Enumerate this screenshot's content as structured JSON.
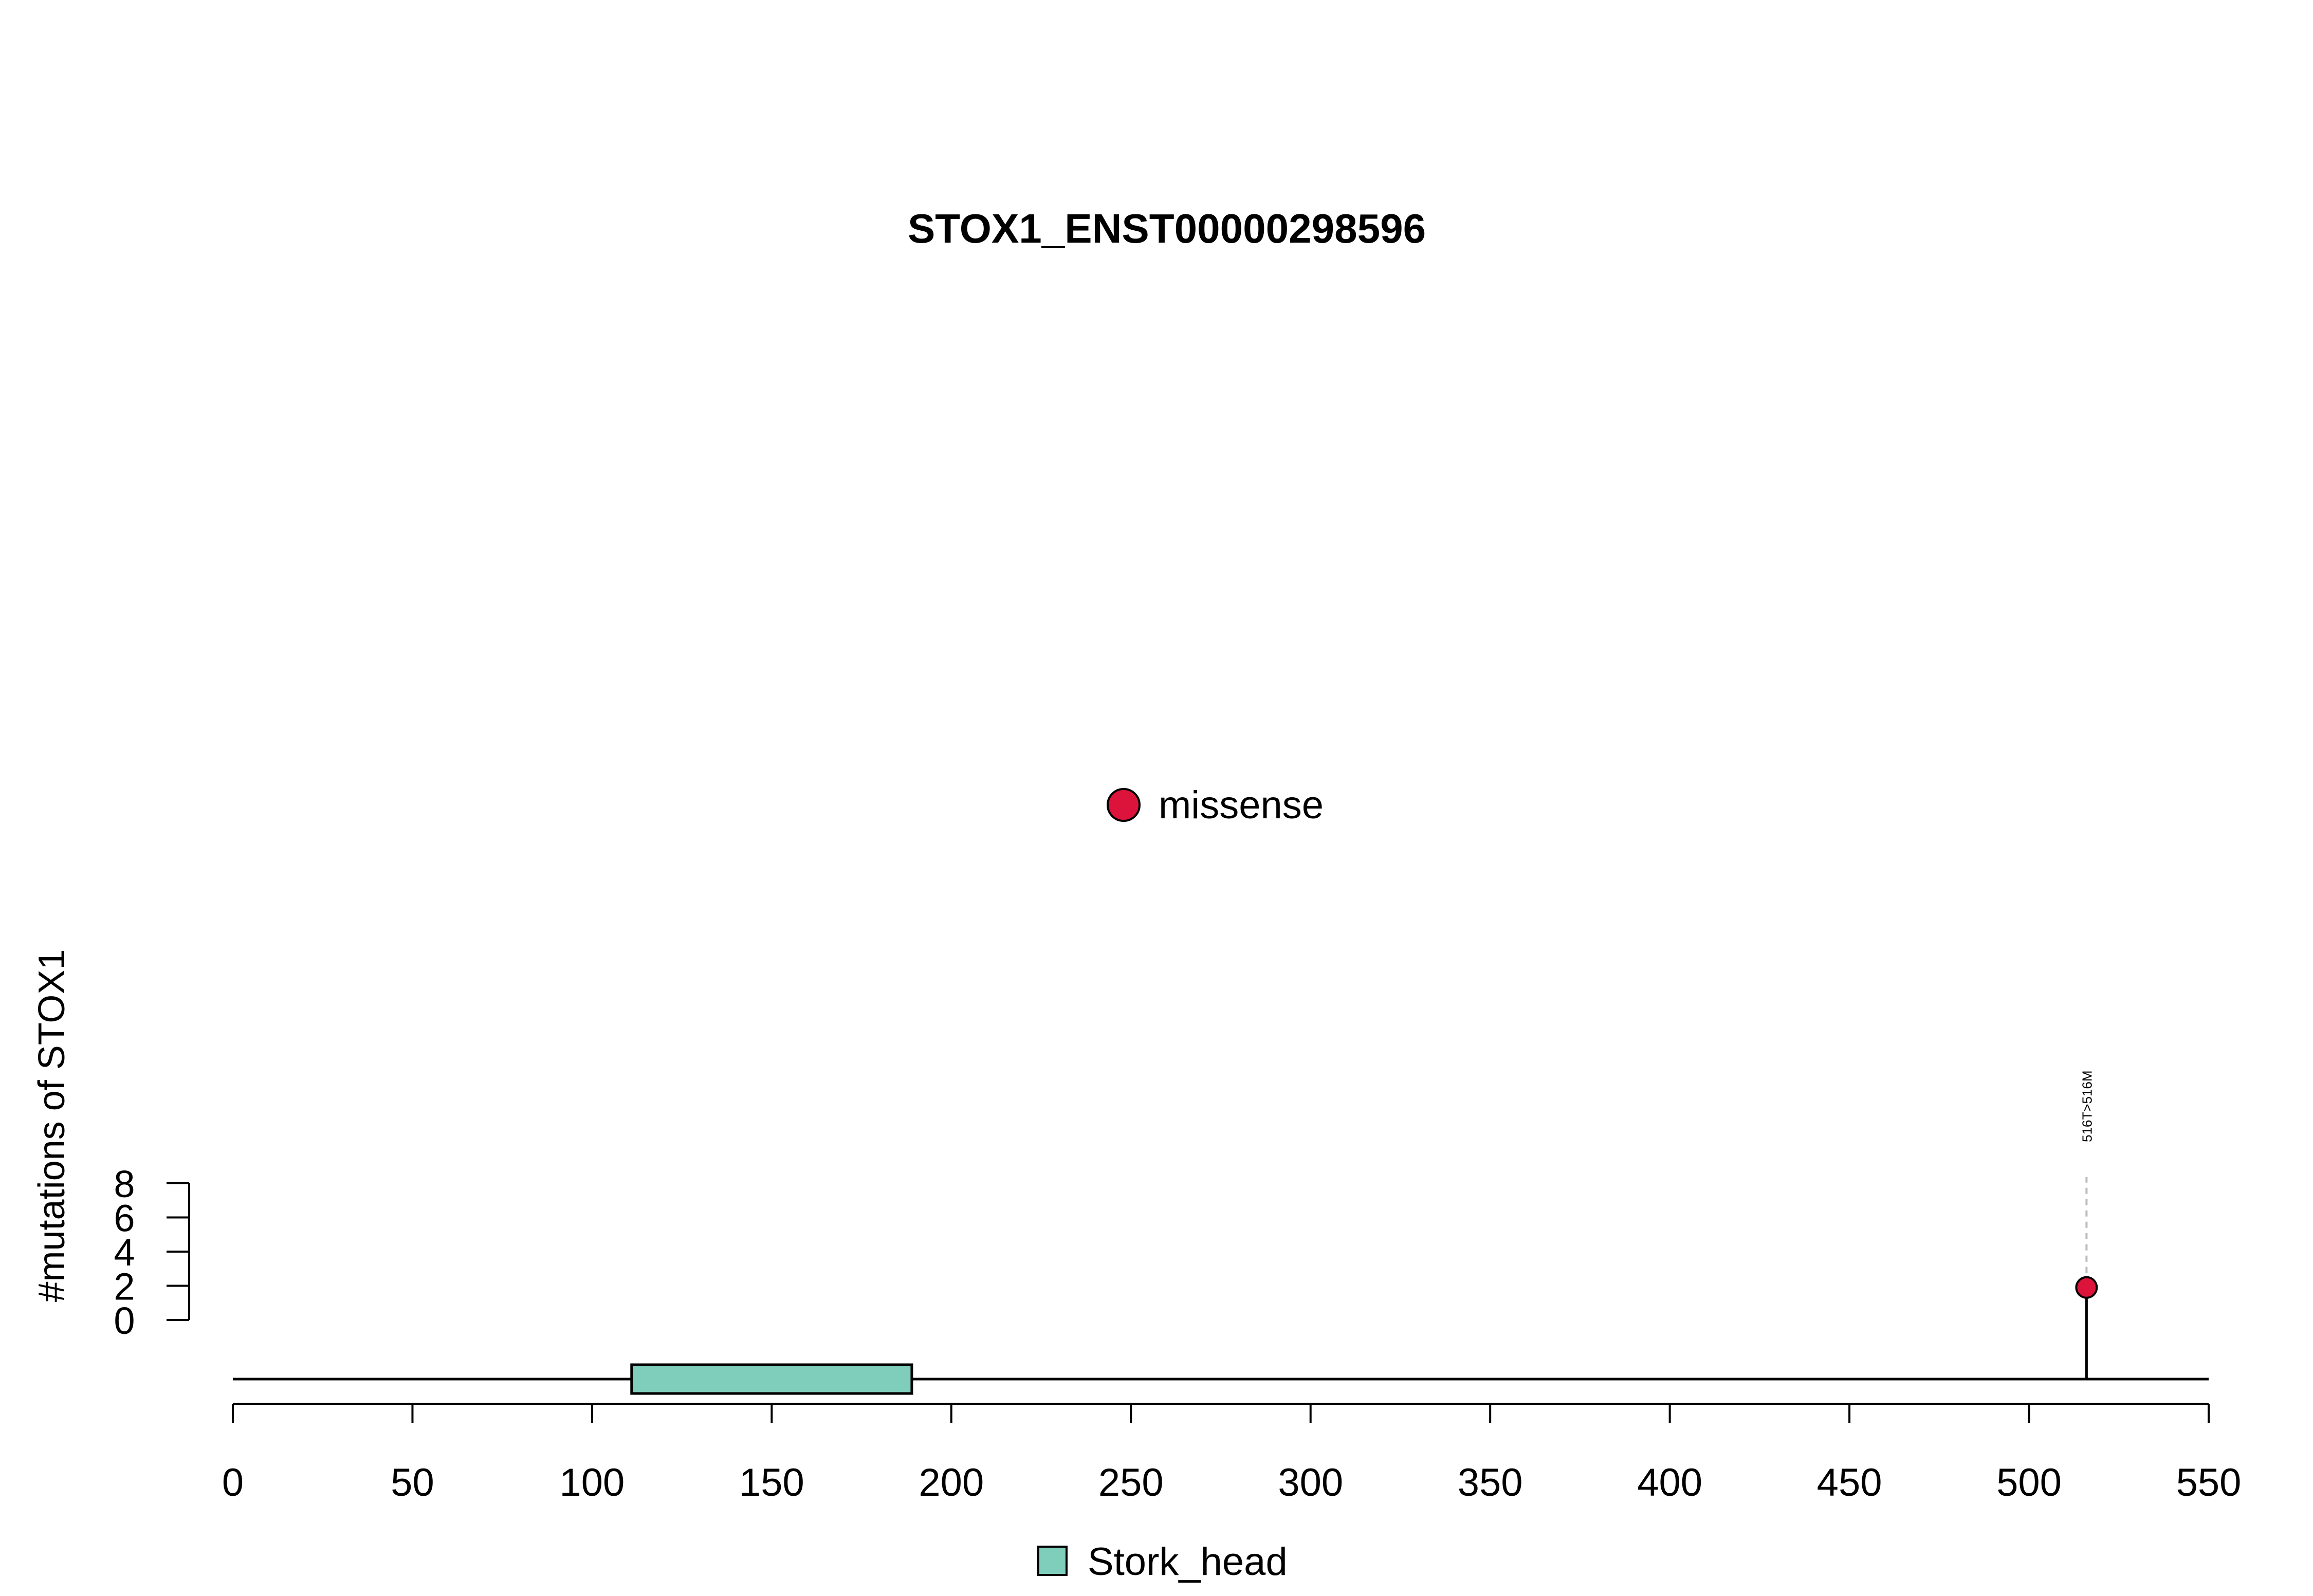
{
  "chart_data": {
    "type": "lollipop",
    "title": "STOX1_ENST00000298596",
    "ylabel": "#mutations of STOX1",
    "xlabel": "",
    "xlim": [
      0,
      550
    ],
    "x_ticks": [
      0,
      50,
      100,
      150,
      200,
      250,
      300,
      350,
      400,
      450,
      500,
      550
    ],
    "ylim": [
      0,
      8
    ],
    "y_ticks": [
      0,
      2,
      4,
      6,
      8
    ],
    "mutation_types": [
      {
        "name": "missense",
        "color": "#DC143C"
      }
    ],
    "mutations": [
      {
        "label": "516T>516M",
        "position": 516,
        "count": 1,
        "type": "missense"
      }
    ],
    "domains": [
      {
        "name": "Stork_head",
        "start": 111,
        "end": 189,
        "color": "#7FCDBB"
      }
    ],
    "legend_mutation_position": "top-center",
    "legend_domain_position": "bottom-center"
  }
}
